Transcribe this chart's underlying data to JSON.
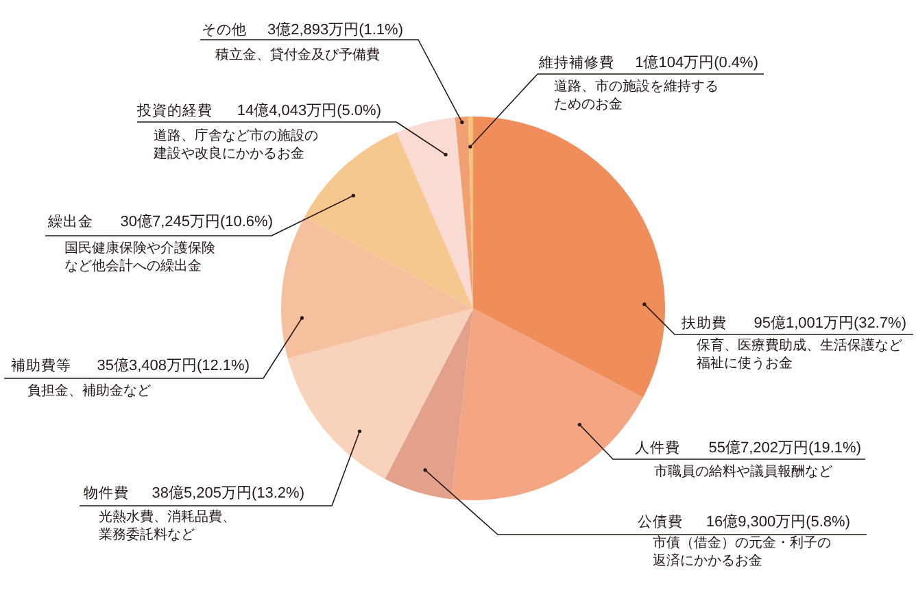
{
  "chart_data": {
    "type": "pie",
    "categories": [
      "扶助費",
      "人件費",
      "公債費",
      "物件費",
      "補助費等",
      "繰出金",
      "投資的経費",
      "その他",
      "維持補修費"
    ],
    "values": [
      32.7,
      19.1,
      5.8,
      13.2,
      12.1,
      10.6,
      5.0,
      1.1,
      0.4
    ],
    "colors": [
      "#f08e5b",
      "#f4a683",
      "#e3a08b",
      "#f9d2bc",
      "#f6bf9e",
      "#f6c78e",
      "#f9dbd3",
      "#f1a072",
      "#f8c17c"
    ],
    "value_labels": [
      "95億1,001万円(32.7%)",
      "55億7,202万円(19.1%)",
      "16億9,300万円(5.8%)",
      "38億5,205万円(13.2%)",
      "35億3,408万円(12.1%)",
      "30億7,245万円(10.6%)",
      "14億4,043万円(5.0%)",
      "3億2,893万円(1.1%)",
      "1億104万円(0.4%)"
    ],
    "annotations": [
      "保育、医療費助成、生活保護など福祉に使うお金",
      "市職員の給料や議員報酬など",
      "市債（借金）の元金・利子の返済にかかるお金",
      "光熱水費、消耗品費、業務委託料など",
      "負担金、補助金など",
      "国民健康保険や介護保険など他会計への繰出金",
      "道路、庁舎など市の施設の建設や改良にかかるお金",
      "積立金、貸付金及び予備費",
      "道路、市の施設を維持するためのお金"
    ]
  }
}
